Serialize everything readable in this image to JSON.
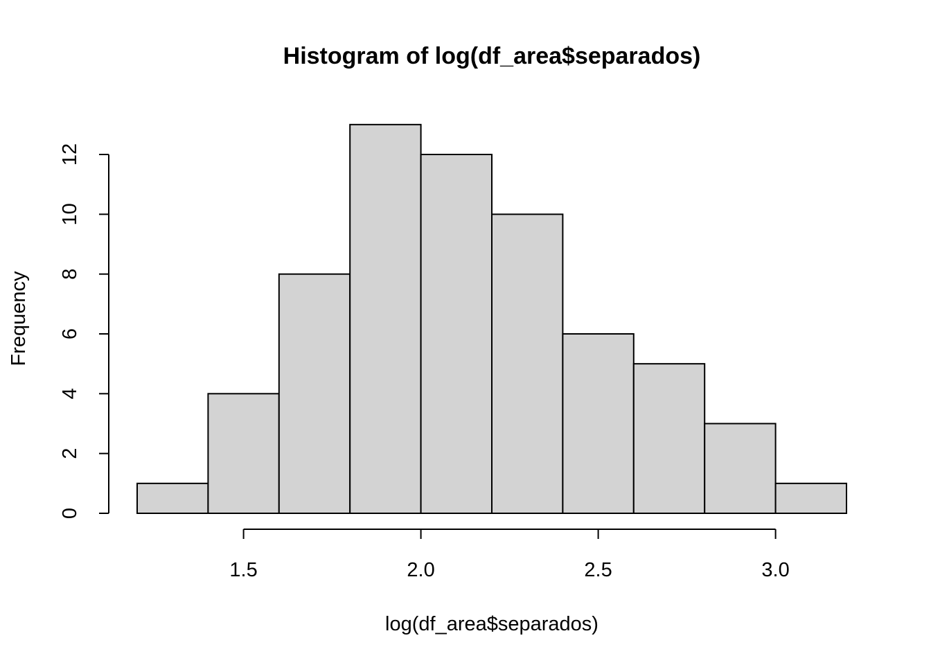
{
  "chart_data": {
    "type": "bar",
    "title": "Histogram of log(df_area$separados)",
    "xlabel": "log(df_area$separados)",
    "ylabel": "Frequency",
    "bins": [
      {
        "start": 1.2,
        "end": 1.4,
        "count": 1
      },
      {
        "start": 1.4,
        "end": 1.6,
        "count": 4
      },
      {
        "start": 1.6,
        "end": 1.8,
        "count": 8
      },
      {
        "start": 1.8,
        "end": 2.0,
        "count": 13
      },
      {
        "start": 2.0,
        "end": 2.2,
        "count": 12
      },
      {
        "start": 2.2,
        "end": 2.4,
        "count": 10
      },
      {
        "start": 2.4,
        "end": 2.6,
        "count": 6
      },
      {
        "start": 2.6,
        "end": 2.8,
        "count": 5
      },
      {
        "start": 2.8,
        "end": 3.0,
        "count": 3
      },
      {
        "start": 3.0,
        "end": 3.2,
        "count": 1
      }
    ],
    "xlim": [
      1.2,
      3.2
    ],
    "ylim": [
      0,
      13
    ],
    "x_ticks": [
      1.5,
      2.0,
      2.5,
      3.0
    ],
    "x_tick_labels": [
      "1.5",
      "2.0",
      "2.5",
      "3.0"
    ],
    "y_ticks": [
      0,
      2,
      4,
      6,
      8,
      10,
      12
    ],
    "y_tick_labels": [
      "0",
      "2",
      "4",
      "6",
      "8",
      "10",
      "12"
    ],
    "grid": false,
    "bar_fill": "#d3d3d3",
    "bar_stroke": "#000000"
  }
}
